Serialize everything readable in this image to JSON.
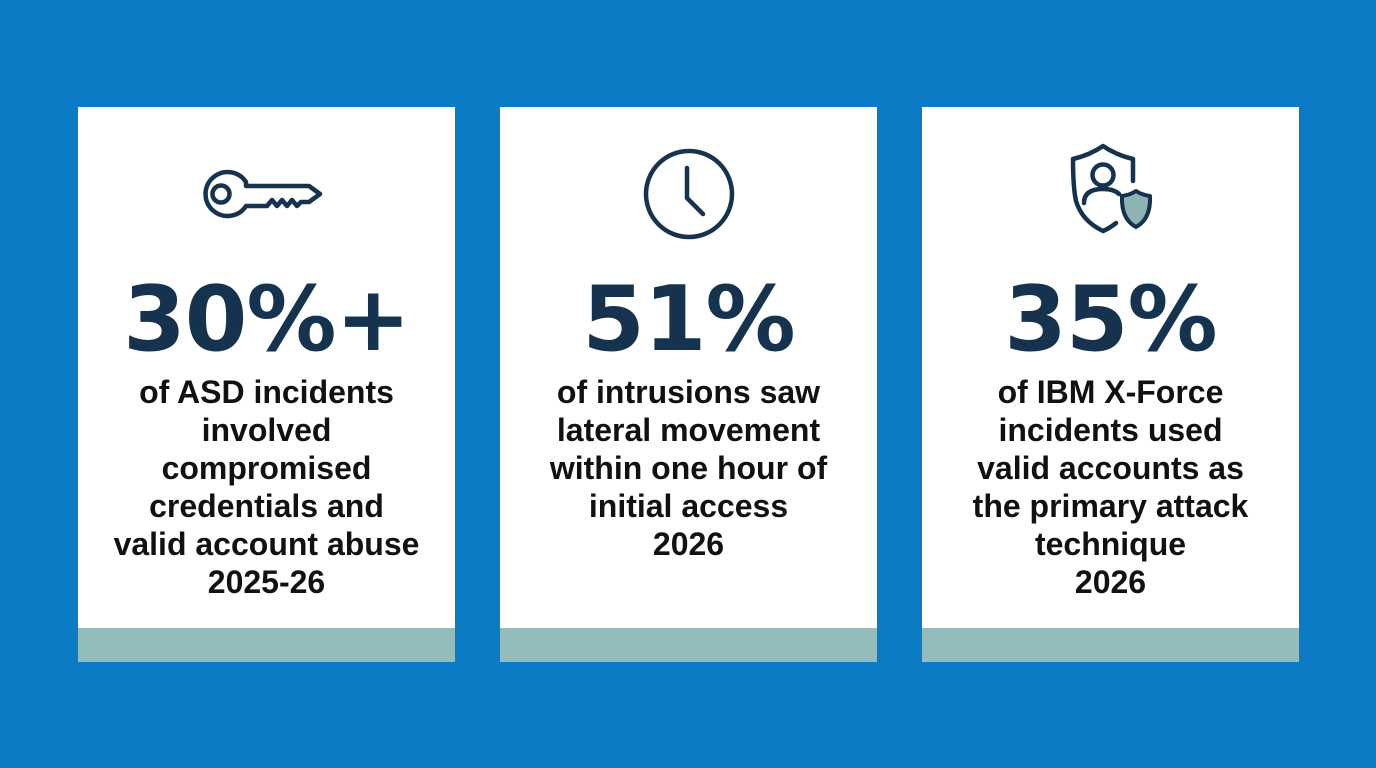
{
  "colors": {
    "background": "#0a7bc4",
    "card": "#ffffff",
    "accent_bar": "#93bcbd",
    "icon_stroke": "#15334f",
    "icon_fill": "#8fb3b3",
    "stat_text": "#15334f",
    "desc_text": "#111111"
  },
  "cards": [
    {
      "icon": "key-icon",
      "value": "30%+",
      "lines": [
        "of ASD incidents",
        "involved",
        "compromised",
        "credentials and",
        "valid account abuse",
        "2025-26"
      ]
    },
    {
      "icon": "clock-icon",
      "value": "51%",
      "lines": [
        "of intrusions saw",
        "lateral movement",
        "within one hour of",
        "initial access",
        "2026"
      ]
    },
    {
      "icon": "user-shield-icon",
      "value": "35%",
      "lines": [
        "of IBM X-Force",
        "incidents used",
        "valid accounts as",
        "the primary attack",
        "technique",
        "2026"
      ]
    }
  ]
}
